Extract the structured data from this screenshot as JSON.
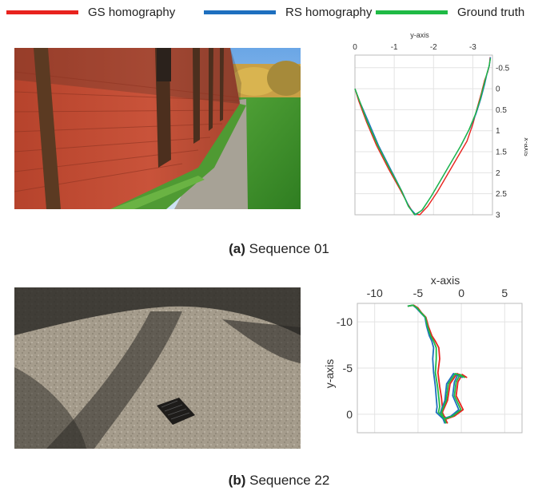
{
  "legend": [
    {
      "label": "GS homography",
      "color": "#e8231e"
    },
    {
      "label": "RS homography",
      "color": "#1e6fbf"
    },
    {
      "label": "Ground truth",
      "color": "#1fba45"
    }
  ],
  "captions": [
    {
      "letter": "(a)",
      "text": "Sequence 01"
    },
    {
      "letter": "(b)",
      "text": "Sequence 22"
    }
  ],
  "chart_data": [
    {
      "type": "line",
      "title": "",
      "xlabel": "y-axis",
      "ylabel": "x-axis",
      "x_axis_position": "top",
      "y_axis_position": "right",
      "x_reversed": true,
      "y_reversed": true,
      "xlim": [
        0,
        -3.5
      ],
      "ylim": [
        -0.8,
        3
      ],
      "x_ticks": [
        0,
        -1,
        -2,
        -3
      ],
      "y_ticks": [
        -0.5,
        0,
        0.5,
        1,
        1.5,
        2,
        2.5,
        3
      ],
      "x_tick_labels": [
        "0",
        "-1",
        "-2",
        "-3"
      ],
      "y_tick_labels": [
        "-0.5",
        "0",
        "0.5",
        "1",
        "1.5",
        "2",
        "2.5",
        "3"
      ],
      "grid": true,
      "series": [
        {
          "name": "GS homography",
          "color": "#e8231e",
          "x": [
            0,
            -0.1,
            -0.3,
            -0.55,
            -0.85,
            -1.15,
            -1.35,
            -1.5,
            -1.65,
            -1.85,
            -2.1,
            -2.35,
            -2.6,
            -2.85,
            -3.0,
            -3.1,
            -3.22,
            -3.3,
            -3.38,
            -3.42,
            -3.44
          ],
          "y": [
            0,
            0.3,
            0.8,
            1.35,
            1.9,
            2.4,
            2.75,
            2.98,
            3.0,
            2.8,
            2.45,
            2.05,
            1.65,
            1.25,
            0.85,
            0.5,
            0.1,
            -0.2,
            -0.4,
            -0.55,
            -0.75
          ]
        },
        {
          "name": "RS homography",
          "color": "#1e6fbf",
          "x": [
            0,
            -0.12,
            -0.35,
            -0.6,
            -0.9,
            -1.2,
            -1.38,
            -1.55,
            -1.72,
            -1.95,
            -2.2,
            -2.45,
            -2.7,
            -2.92,
            -3.08,
            -3.2,
            -3.3,
            -3.36,
            -3.42,
            -3.45
          ],
          "y": [
            0,
            0.3,
            0.8,
            1.35,
            1.9,
            2.45,
            2.82,
            3.0,
            2.88,
            2.55,
            2.15,
            1.75,
            1.35,
            0.95,
            0.6,
            0.25,
            -0.1,
            -0.35,
            -0.55,
            -0.75
          ]
        },
        {
          "name": "Ground truth",
          "color": "#1fba45",
          "x": [
            0,
            -0.12,
            -0.32,
            -0.58,
            -0.88,
            -1.18,
            -1.36,
            -1.52,
            -1.7,
            -1.93,
            -2.18,
            -2.43,
            -2.68,
            -2.9,
            -3.06,
            -3.18,
            -3.28,
            -3.35,
            -3.41,
            -3.45
          ],
          "y": [
            0,
            0.3,
            0.8,
            1.35,
            1.9,
            2.42,
            2.8,
            3.0,
            2.9,
            2.58,
            2.18,
            1.78,
            1.38,
            0.98,
            0.62,
            0.28,
            -0.08,
            -0.33,
            -0.53,
            -0.72
          ]
        }
      ]
    },
    {
      "type": "line",
      "title": "",
      "xlabel": "x-axis",
      "ylabel": "y-axis",
      "x_axis_position": "top",
      "y_axis_position": "left",
      "y_reversed": true,
      "xlim": [
        -12,
        7
      ],
      "ylim": [
        -12,
        2
      ],
      "x_ticks": [
        -10,
        -5,
        0,
        5
      ],
      "y_ticks": [
        -10,
        -5,
        0
      ],
      "x_tick_labels": [
        "-10",
        "-5",
        "0",
        "5"
      ],
      "y_tick_labels": [
        "-10",
        "-5",
        "0"
      ],
      "grid": true,
      "series": [
        {
          "name": "GS homography",
          "color": "#e8231e",
          "x": [
            -6.2,
            -5.5,
            -5.0,
            -4.6,
            -4.1,
            -3.8,
            -3.4,
            -3.0,
            -2.6,
            -2.5,
            -2.7,
            -2.5,
            -2.3,
            -2.2,
            -2.4,
            -1.7,
            -0.8,
            0.2,
            -0.6,
            -0.4,
            0.1,
            0.6,
            -0.5,
            -1.3,
            -1.6,
            -2.2,
            -1.6
          ],
          "y": [
            -11.7,
            -11.8,
            -11.5,
            -11.0,
            -10.5,
            -9.5,
            -8.5,
            -7.9,
            -7.2,
            -6.0,
            -4.5,
            -3.0,
            -1.8,
            -0.8,
            -0.2,
            0.5,
            0.2,
            -0.5,
            -2.0,
            -3.5,
            -4.3,
            -4.0,
            -4.4,
            -3.3,
            -1.5,
            -0.2,
            1.0
          ]
        },
        {
          "name": "RS homography",
          "color": "#1e6fbf",
          "x": [
            -6.2,
            -5.6,
            -5.2,
            -4.7,
            -4.2,
            -4.0,
            -3.7,
            -3.4,
            -3.2,
            -3.3,
            -3.2,
            -3.0,
            -2.9,
            -2.8,
            -2.9,
            -2.1,
            -1.2,
            -0.3,
            -1.0,
            -0.8,
            -0.4,
            0.1,
            -0.9,
            -1.7,
            -1.9,
            -2.4,
            -1.9
          ],
          "y": [
            -11.7,
            -11.8,
            -11.5,
            -11.0,
            -10.5,
            -9.5,
            -8.5,
            -7.9,
            -7.2,
            -6.0,
            -4.5,
            -3.0,
            -1.8,
            -0.8,
            -0.2,
            0.5,
            0.2,
            -0.5,
            -2.0,
            -3.5,
            -4.3,
            -4.0,
            -4.4,
            -3.3,
            -1.5,
            -0.2,
            1.0
          ]
        },
        {
          "name": "Ground truth",
          "color": "#1fba45",
          "x": [
            -6.2,
            -5.6,
            -5.1,
            -4.65,
            -4.15,
            -3.9,
            -3.55,
            -3.2,
            -2.9,
            -2.9,
            -3.0,
            -2.75,
            -2.6,
            -2.5,
            -2.65,
            -1.9,
            -1.0,
            -0.05,
            -0.8,
            -0.6,
            -0.15,
            0.35,
            -0.7,
            -1.5,
            -1.75,
            -2.3,
            -1.75
          ],
          "y": [
            -11.7,
            -11.8,
            -11.5,
            -11.0,
            -10.5,
            -9.5,
            -8.5,
            -7.9,
            -7.2,
            -6.0,
            -4.5,
            -3.0,
            -1.8,
            -0.8,
            -0.2,
            0.5,
            0.2,
            -0.5,
            -2.0,
            -3.5,
            -4.3,
            -4.0,
            -4.4,
            -3.3,
            -1.5,
            -0.2,
            1.0
          ]
        }
      ]
    }
  ]
}
